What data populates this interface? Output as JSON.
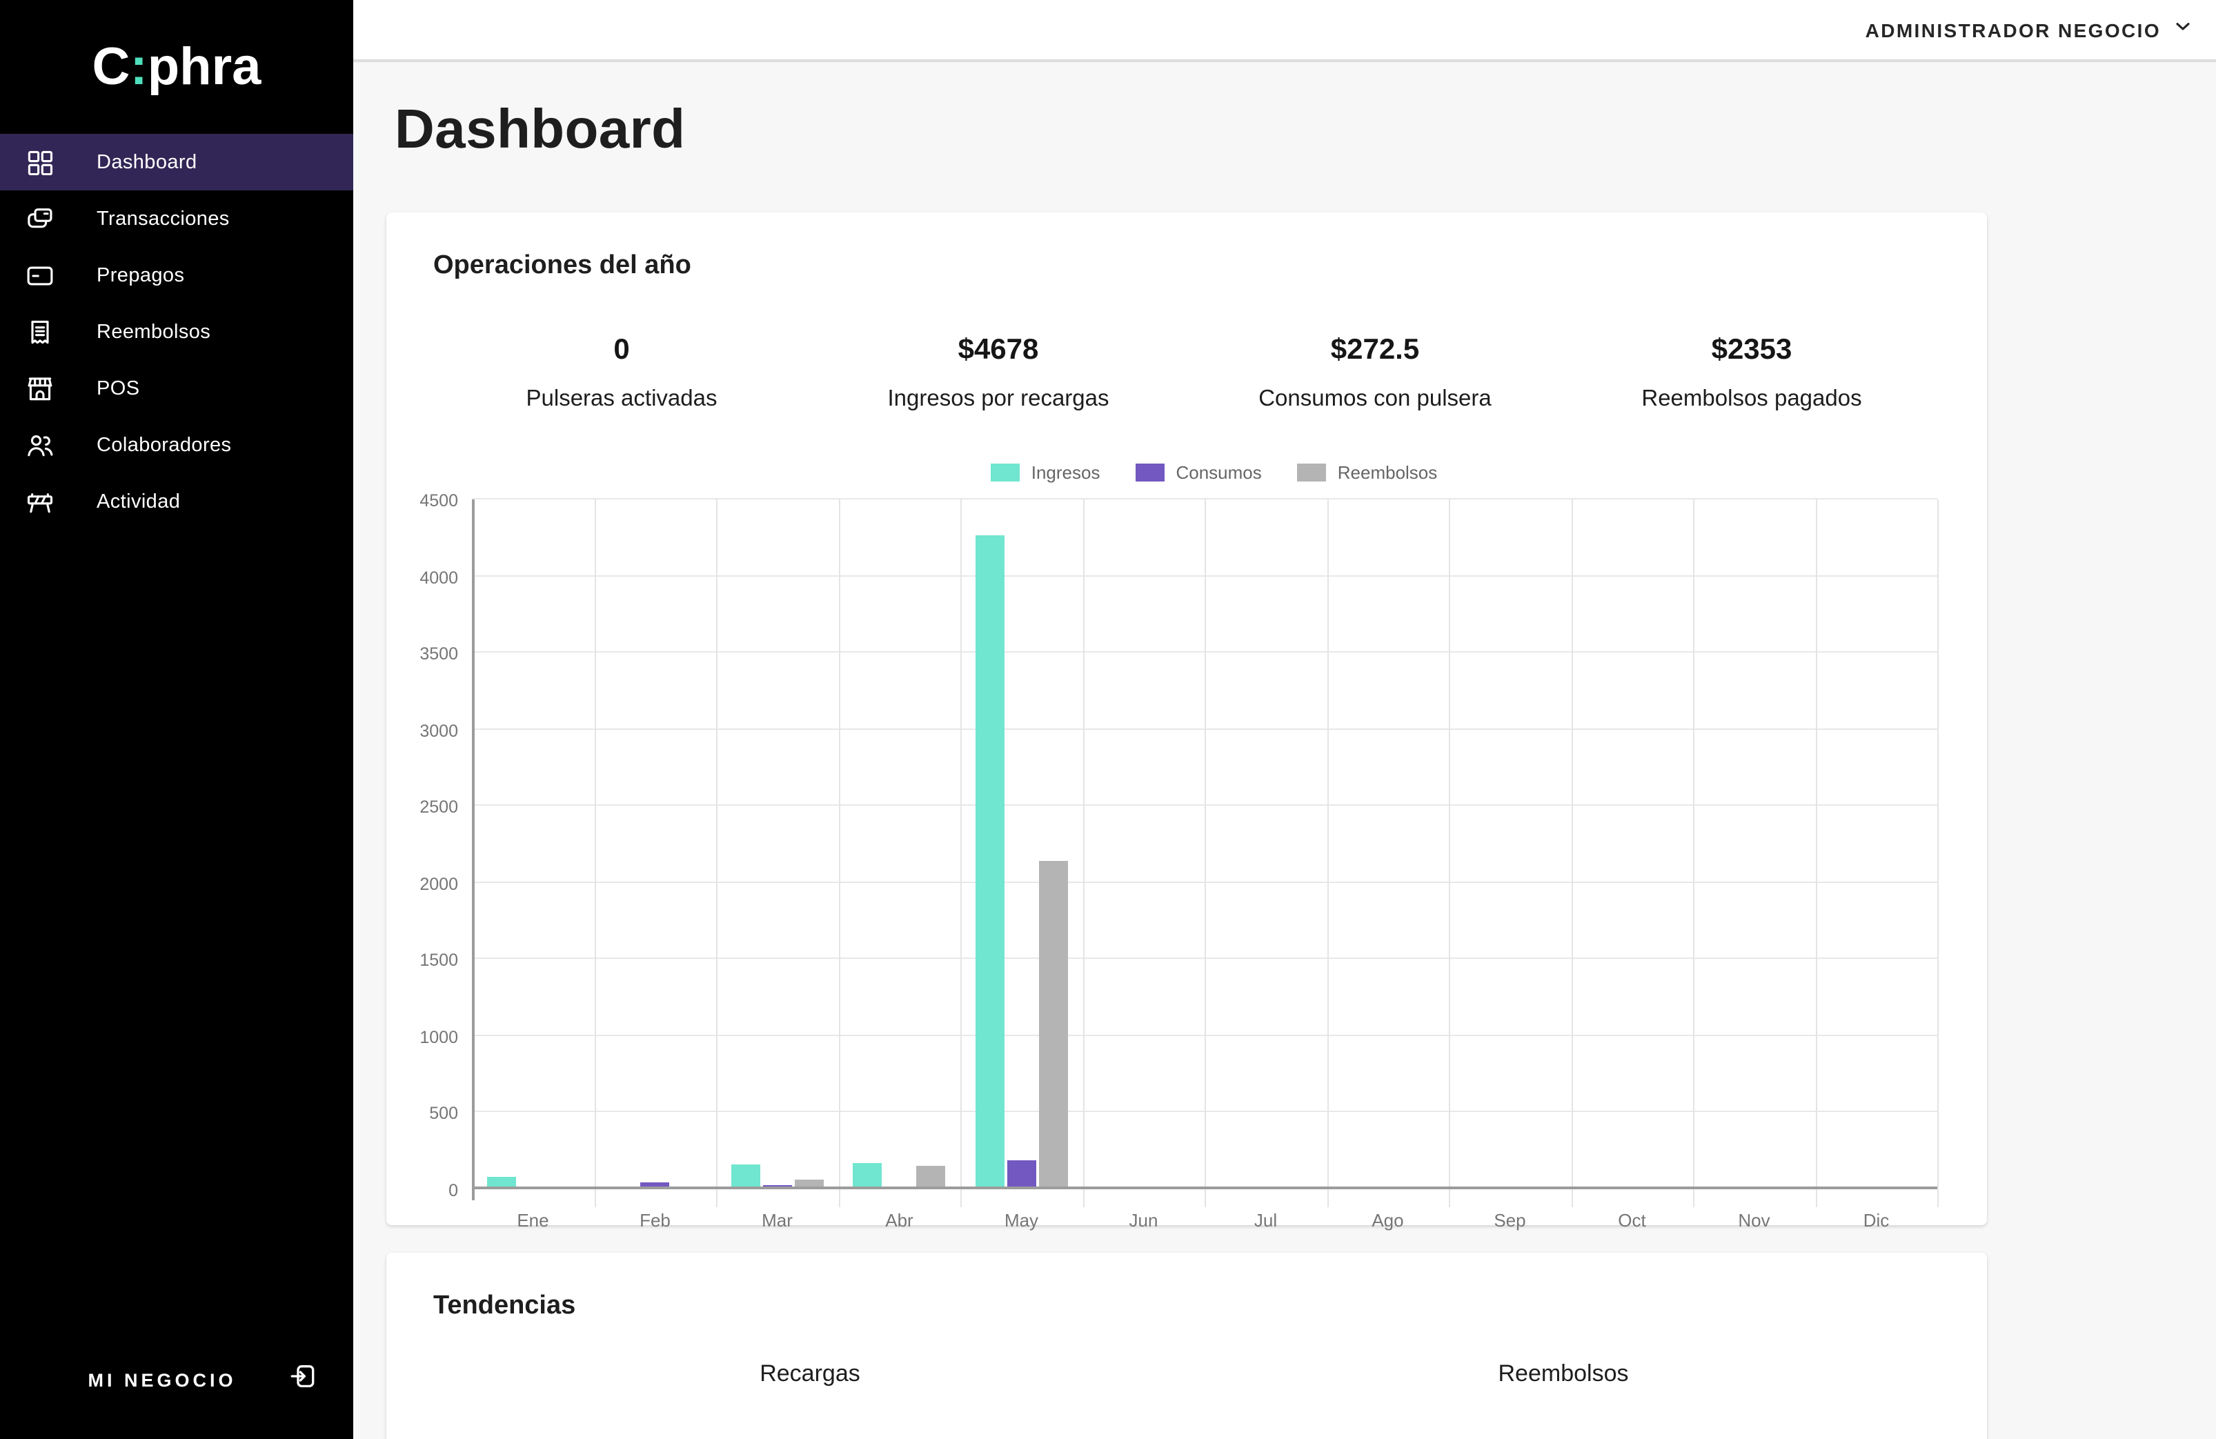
{
  "brand": {
    "logo_c": "C",
    "logo_colon": ":",
    "logo_rest": "phra"
  },
  "topbar": {
    "user_menu_label": "ADMINISTRADOR NEGOCIO"
  },
  "sidebar": {
    "items": [
      {
        "label": "Dashboard",
        "icon": "dashboard-grid",
        "active": true
      },
      {
        "label": "Transacciones",
        "icon": "transactions-cards",
        "active": false
      },
      {
        "label": "Prepagos",
        "icon": "credit-card",
        "active": false
      },
      {
        "label": "Reembolsos",
        "icon": "receipt",
        "active": false
      },
      {
        "label": "POS",
        "icon": "storefront",
        "active": false
      },
      {
        "label": "Colaboradores",
        "icon": "people",
        "active": false
      },
      {
        "label": "Actividad",
        "icon": "barrier",
        "active": false
      }
    ],
    "footer_label": "MI NEGOCIO"
  },
  "page": {
    "title": "Dashboard"
  },
  "operations_card": {
    "title": "Operaciones del año",
    "stats": [
      {
        "value": "0",
        "label": "Pulseras activadas"
      },
      {
        "value": "$4678",
        "label": "Ingresos por recargas"
      },
      {
        "value": "$272.5",
        "label": "Consumos con pulsera"
      },
      {
        "value": "$2353",
        "label": "Reembolsos pagados"
      }
    ]
  },
  "chart_data": {
    "type": "bar",
    "title": "Operaciones del año",
    "categories": [
      "Ene",
      "Feb",
      "Mar",
      "Abr",
      "May",
      "Jun",
      "Jul",
      "Ago",
      "Sep",
      "Oct",
      "Nov",
      "Dic"
    ],
    "series": [
      {
        "name": "Ingresos",
        "color": "#70e5cf",
        "values": [
          80,
          0,
          163,
          170,
          4265,
          0,
          0,
          0,
          0,
          0,
          0,
          0
        ]
      },
      {
        "name": "Consumos",
        "color": "#7258c0",
        "values": [
          17.5,
          42,
          25,
          0,
          188,
          0,
          0,
          0,
          0,
          0,
          0,
          0
        ]
      },
      {
        "name": "Reembolsos",
        "color": "#b4b4b4",
        "values": [
          0,
          0,
          60,
          155,
          2138,
          0,
          0,
          0,
          0,
          0,
          0,
          0
        ]
      }
    ],
    "ylim": [
      0,
      4500
    ],
    "ytick_step": 500,
    "grid": true,
    "legend_position": "top-center",
    "xlabel": "",
    "ylabel": ""
  },
  "trends_card": {
    "title": "Tendencias",
    "columns": [
      "Recargas",
      "Reembolsos"
    ]
  },
  "colors": {
    "accent_teal": "#70e5cf",
    "accent_purple": "#7258c0",
    "accent_gray": "#b4b4b4",
    "sidebar_bg": "#000000",
    "sidebar_active_bg": "#322656",
    "page_bg": "#f7f7f7"
  }
}
